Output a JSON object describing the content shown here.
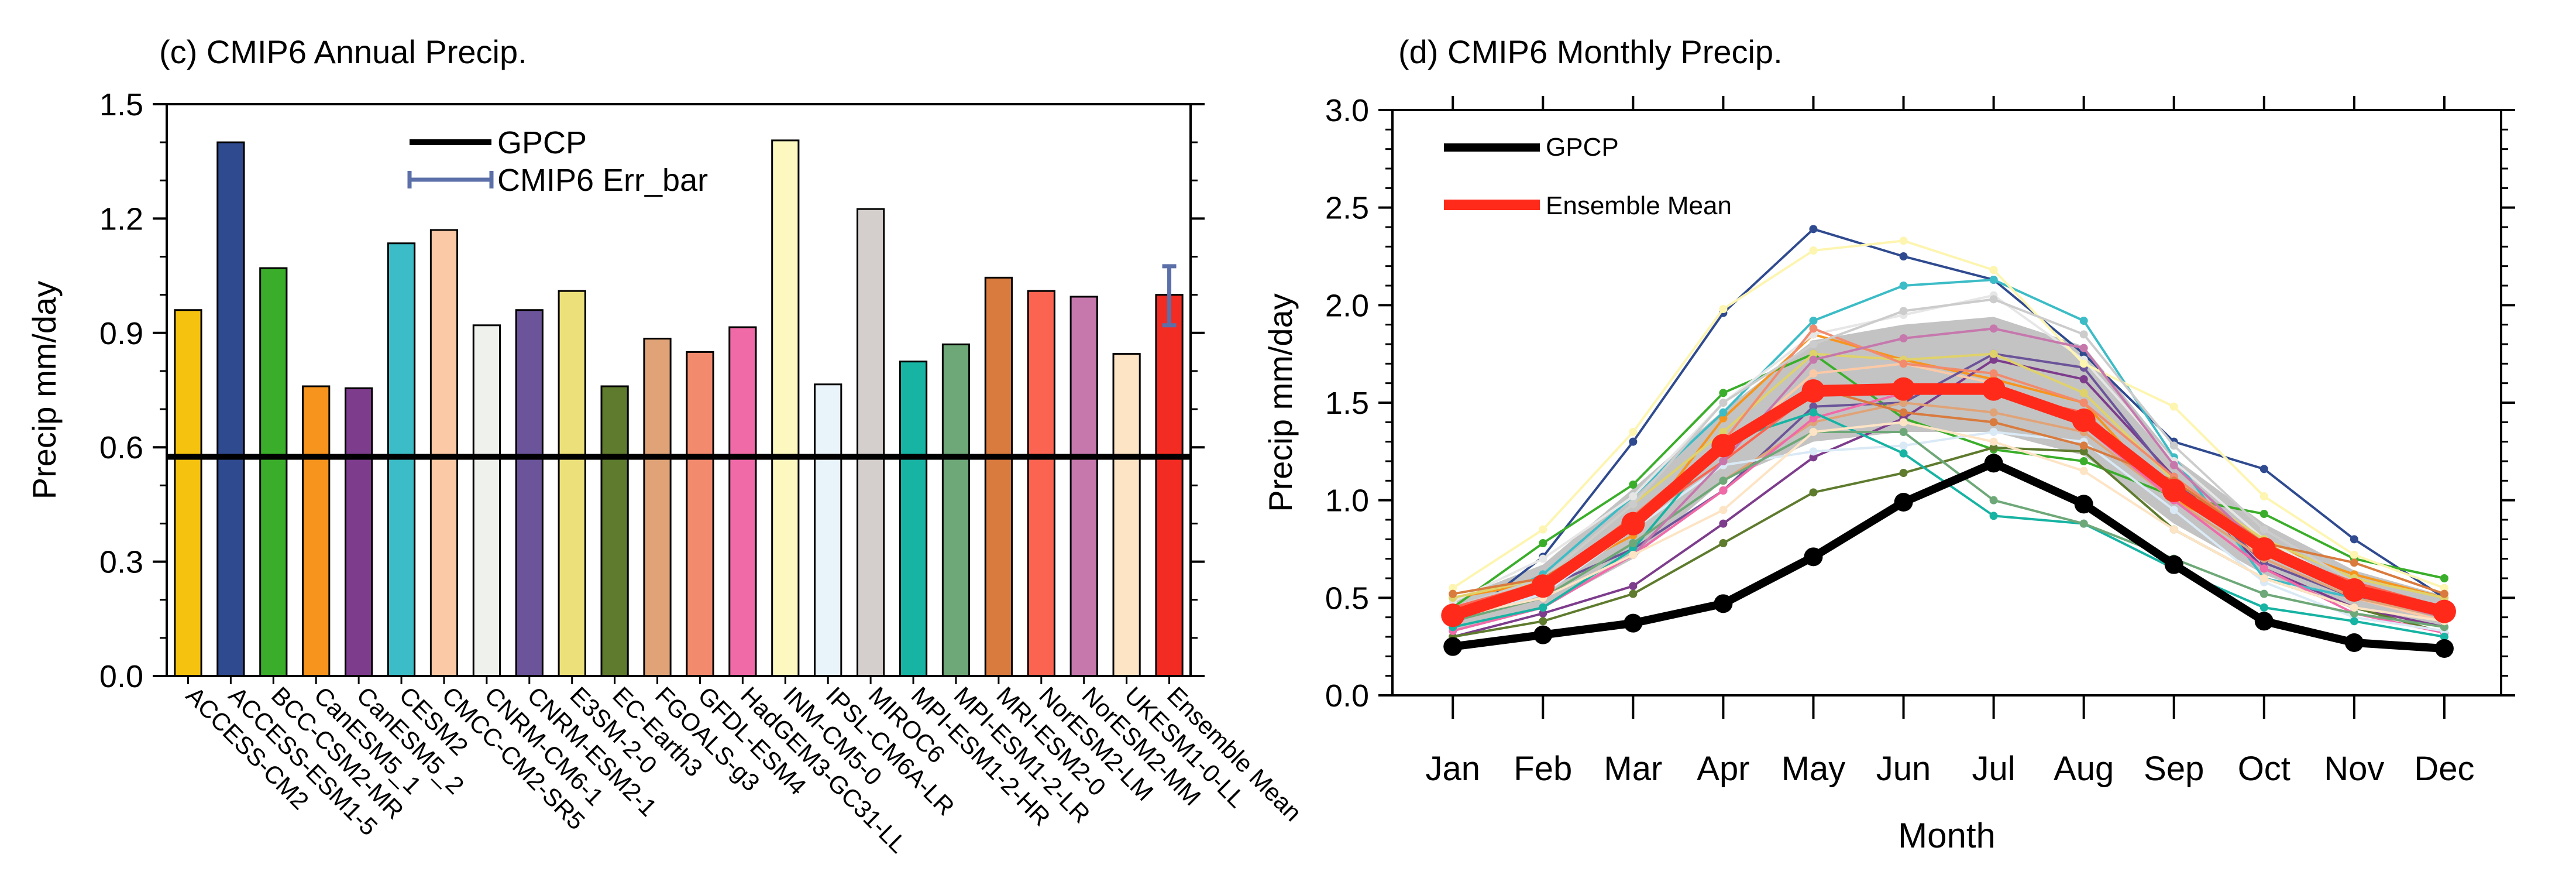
{
  "chart_data": [
    {
      "type": "bar",
      "title": "(c) CMIP6 Annual Precip.",
      "xlabel": "",
      "ylabel": "Precip mm/day",
      "ylim": [
        0,
        1.5
      ],
      "yticks": [
        "0.0",
        "0.3",
        "0.6",
        "0.9",
        "1.2",
        "1.5"
      ],
      "categories": [
        "ACCESS-CM2",
        "ACCESS-ESM1-5",
        "BCC-CSM2-MR",
        "CanESM5_1",
        "CanESM5_2",
        "CESM2",
        "CMCC-CM2-SR5",
        "CNRM-CM6-1",
        "CNRM-ESM2-1",
        "E3SM-2-0",
        "EC-Earth3",
        "FGOALS-g3",
        "GFDL-ESM4",
        "HadGEM3-GC31-LL",
        "INM-CM5-0",
        "IPSL-CM6A-LR",
        "MIROC6",
        "MPI-ESM1-2-HR",
        "MPI-ESM1-2-LR",
        "MRI-ESM2-0",
        "NorESM2-LM",
        "NorESM2-MM",
        "UKESM1-0-LL",
        "Ensemble Mean"
      ],
      "values": [
        0.96,
        1.4,
        1.07,
        0.76,
        0.755,
        1.135,
        1.17,
        0.92,
        0.96,
        1.01,
        0.76,
        0.885,
        0.85,
        0.915,
        1.405,
        0.765,
        1.225,
        0.825,
        0.87,
        1.045,
        1.01,
        0.995,
        0.845,
        1.0
      ],
      "colors": [
        "#f5c210",
        "#2f4a8f",
        "#3aae2a",
        "#f7941d",
        "#7d3c8c",
        "#3cbcc6",
        "#fcc9a6",
        "#eef1ec",
        "#6b5499",
        "#ece07a",
        "#5e7b2e",
        "#e0a377",
        "#f28a6d",
        "#f06aa8",
        "#fdf8c0",
        "#e9f3fa",
        "#d4cfcc",
        "#17b3a3",
        "#6ea878",
        "#d97b3e",
        "#fb6450",
        "#c678ad",
        "#fde4c4",
        "#f22c22"
      ],
      "reference_line": {
        "name": "GPCP",
        "value": 0.575
      },
      "error_bar": {
        "name": "CMIP6 Err_bar",
        "category": "Ensemble Mean",
        "low": 0.92,
        "high": 1.075
      },
      "legend": [
        "GPCP",
        "CMIP6 Err_bar"
      ]
    },
    {
      "type": "line",
      "title": "(d) CMIP6 Monthly Precip.",
      "xlabel": "Month",
      "ylabel": "Precip mm/day",
      "ylim": [
        0,
        3.0
      ],
      "yticks": [
        "0.0",
        "0.5",
        "1.0",
        "1.5",
        "2.0",
        "2.5",
        "3.0"
      ],
      "categories": [
        "Jan",
        "Feb",
        "Mar",
        "Apr",
        "May",
        "Jun",
        "Jul",
        "Aug",
        "Sep",
        "Oct",
        "Nov",
        "Dec"
      ],
      "series": [
        {
          "name": "GPCP",
          "color": "#000000",
          "values": [
            0.25,
            0.31,
            0.37,
            0.47,
            0.71,
            0.99,
            1.19,
            0.98,
            0.67,
            0.38,
            0.27,
            0.24
          ]
        },
        {
          "name": "Ensemble Mean",
          "color": "#ff2a1a",
          "values": [
            0.41,
            0.56,
            0.88,
            1.28,
            1.56,
            1.57,
            1.57,
            1.41,
            1.05,
            0.75,
            0.54,
            0.43
          ]
        }
      ],
      "spread_band": {
        "color": "#b8b8b8",
        "low": [
          0.33,
          0.45,
          0.7,
          1.1,
          1.3,
          1.35,
          1.35,
          1.23,
          0.88,
          0.62,
          0.44,
          0.35
        ],
        "high": [
          0.49,
          0.67,
          1.06,
          1.46,
          1.82,
          1.9,
          1.94,
          1.79,
          1.22,
          0.88,
          0.64,
          0.51
        ]
      },
      "model_lines": [
        {
          "color": "#2f4a8f",
          "values": [
            0.35,
            0.71,
            1.3,
            1.96,
            2.39,
            2.25,
            2.13,
            1.75,
            1.3,
            1.16,
            0.8,
            0.5
          ]
        },
        {
          "color": "#3aae2a",
          "values": [
            0.45,
            0.78,
            1.08,
            1.55,
            1.75,
            1.42,
            1.26,
            1.2,
            1.02,
            0.93,
            0.7,
            0.6
          ]
        },
        {
          "color": "#f7941d",
          "values": [
            0.5,
            0.58,
            0.82,
            1.42,
            1.85,
            1.72,
            1.62,
            1.5,
            1.0,
            0.78,
            0.62,
            0.5
          ]
        },
        {
          "color": "#7d3c8c",
          "values": [
            0.3,
            0.42,
            0.56,
            0.88,
            1.22,
            1.42,
            1.72,
            1.62,
            1.12,
            0.65,
            0.45,
            0.35
          ]
        },
        {
          "color": "#3cbcc6",
          "values": [
            0.4,
            0.62,
            1.02,
            1.45,
            1.92,
            2.1,
            2.13,
            1.92,
            1.22,
            0.6,
            0.5,
            0.4
          ]
        },
        {
          "color": "#fcc9a6",
          "values": [
            0.42,
            0.55,
            0.9,
            1.25,
            1.65,
            1.7,
            1.6,
            1.42,
            1.05,
            0.7,
            0.5,
            0.38
          ]
        },
        {
          "color": "#e6e6e6",
          "values": [
            0.48,
            0.7,
            1.02,
            1.5,
            1.85,
            1.95,
            2.05,
            1.72,
            1.2,
            0.8,
            0.55,
            0.45
          ]
        },
        {
          "color": "#6b5499",
          "values": [
            0.4,
            0.55,
            0.75,
            1.05,
            1.48,
            1.5,
            1.75,
            1.68,
            1.1,
            0.68,
            0.5,
            0.42
          ]
        },
        {
          "color": "#e0d26a",
          "values": [
            0.5,
            0.6,
            0.98,
            1.35,
            1.75,
            1.72,
            1.75,
            1.55,
            1.1,
            0.8,
            0.6,
            0.5
          ]
        },
        {
          "color": "#5e7b2e",
          "values": [
            0.3,
            0.38,
            0.52,
            0.78,
            1.04,
            1.14,
            1.27,
            1.25,
            0.85,
            0.6,
            0.45,
            0.32
          ]
        },
        {
          "color": "#e0a377",
          "values": [
            0.38,
            0.5,
            0.78,
            1.1,
            1.4,
            1.5,
            1.45,
            1.35,
            1.0,
            0.7,
            0.5,
            0.4
          ]
        },
        {
          "color": "#f28a6d",
          "values": [
            0.42,
            0.56,
            0.92,
            1.3,
            1.88,
            1.7,
            1.65,
            1.5,
            1.12,
            0.78,
            0.55,
            0.42
          ]
        },
        {
          "color": "#f06aa8",
          "values": [
            0.33,
            0.45,
            0.72,
            1.05,
            1.42,
            1.55,
            1.6,
            1.38,
            1.0,
            0.65,
            0.42,
            0.32
          ]
        },
        {
          "color": "#fdf5b0",
          "values": [
            0.55,
            0.85,
            1.35,
            1.98,
            2.28,
            2.33,
            2.18,
            1.7,
            1.48,
            1.02,
            0.72,
            0.55
          ]
        },
        {
          "color": "#d9e9f5",
          "values": [
            0.38,
            0.52,
            0.85,
            1.18,
            1.25,
            1.28,
            1.35,
            1.3,
            0.95,
            0.58,
            0.4,
            0.33
          ]
        },
        {
          "color": "#cccccc",
          "values": [
            0.45,
            0.6,
            0.98,
            1.5,
            1.8,
            1.97,
            2.03,
            1.85,
            1.28,
            0.85,
            0.58,
            0.45
          ]
        },
        {
          "color": "#17b3a3",
          "values": [
            0.35,
            0.45,
            0.75,
            1.3,
            1.45,
            1.24,
            0.92,
            0.88,
            0.65,
            0.45,
            0.38,
            0.3
          ]
        },
        {
          "color": "#6ea878",
          "values": [
            0.38,
            0.5,
            0.78,
            1.1,
            1.35,
            1.35,
            1.0,
            0.88,
            0.7,
            0.52,
            0.42,
            0.35
          ]
        },
        {
          "color": "#d97b3e",
          "values": [
            0.52,
            0.6,
            0.88,
            1.3,
            1.58,
            1.45,
            1.4,
            1.28,
            1.1,
            0.78,
            0.68,
            0.52
          ]
        },
        {
          "color": "#fb6450",
          "values": [
            0.45,
            0.58,
            0.88,
            1.2,
            1.55,
            1.6,
            1.55,
            1.45,
            1.05,
            0.75,
            0.58,
            0.45
          ]
        },
        {
          "color": "#c678ad",
          "values": [
            0.4,
            0.5,
            0.72,
            1.2,
            1.72,
            1.83,
            1.88,
            1.78,
            1.18,
            0.75,
            0.52,
            0.4
          ]
        },
        {
          "color": "#fde4c4",
          "values": [
            0.4,
            0.5,
            0.72,
            0.95,
            1.35,
            1.4,
            1.3,
            1.15,
            0.85,
            0.6,
            0.45,
            0.38
          ]
        }
      ],
      "legend": [
        "GPCP",
        "Ensemble Mean"
      ]
    }
  ]
}
